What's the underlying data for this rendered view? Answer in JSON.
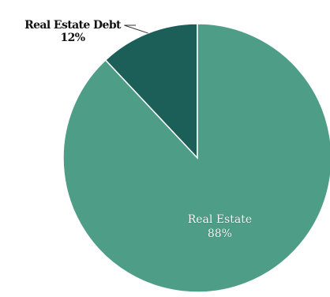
{
  "chart_data": {
    "type": "pie",
    "title": "",
    "slices": [
      {
        "label": "Real Estate Debt",
        "value": 12,
        "value_label": "12%",
        "color": "#1c5e58",
        "label_position": "outside"
      },
      {
        "label": "Real Estate",
        "value": 88,
        "value_label": "88%",
        "color": "#4e9e87",
        "label_position": "inside"
      }
    ],
    "legend": "none"
  }
}
